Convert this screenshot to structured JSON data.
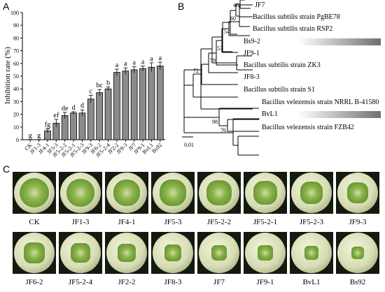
{
  "panels": {
    "a": "A",
    "b": "B",
    "c": "C"
  },
  "chart_data": {
    "type": "bar",
    "ylabel": "Inhibition rate (%)",
    "ylim": [
      0,
      100
    ],
    "yticks": [
      0,
      10,
      20,
      30,
      40,
      50,
      60,
      70,
      80,
      90,
      100
    ],
    "categories": [
      "CK",
      "JF1-3",
      "JF4-1",
      "JF5-3",
      "JF5-2-2",
      "JF5-2-1",
      "JF5-2-3",
      "JF9-3",
      "JF6-2",
      "JF5-2-4",
      "JF2-2",
      "JF8-3",
      "JF7",
      "JF9-1",
      "BvL1",
      "Bs92"
    ],
    "values": [
      0,
      0,
      7,
      13,
      19,
      21,
      21,
      32,
      37,
      40,
      53,
      54,
      55,
      56,
      57,
      58
    ],
    "errors": [
      0,
      0,
      1.5,
      3,
      2.5,
      1,
      2.5,
      3,
      2.5,
      1.5,
      2.5,
      2.5,
      2.5,
      2,
      3.5,
      3
    ],
    "letters": [
      "g",
      "g",
      "fg",
      "ef",
      "de",
      "d",
      "d",
      "c",
      "bc",
      "b",
      "a",
      "a",
      "a",
      "a",
      "a",
      "a"
    ],
    "bar_color": "#8c8c8c",
    "grid": false
  },
  "tree": {
    "scale_label": "0.01",
    "leaves": [
      "JF7",
      "Bacillus subtilis strain PgBE78",
      "Bacillus subtilis strain RSP2",
      "Bs9-2",
      "JF9-1",
      "Bacillus subtilis strain ZK3",
      "JF8-3",
      "Bacillus subtilis strain S1",
      "Bacillus velezensis strain NRRL B-41580",
      "BvL1",
      "Bacillus velezensis strain FZB42"
    ],
    "bootstrap": [
      "46",
      "60",
      "54",
      "53",
      "59",
      "72",
      "98",
      "76"
    ]
  },
  "plates": {
    "row1": [
      "CK",
      "JF1-3",
      "JF4-1",
      "JF5-3",
      "JF5-2-2",
      "JF5-2-1",
      "JF5-2-3",
      "JF9-3"
    ],
    "row2": [
      "JF6-2",
      "JF5-2-4",
      "JF2-2",
      "JF8-3",
      "JF7",
      "JF9-1",
      "BvL1",
      "Bs92"
    ]
  }
}
